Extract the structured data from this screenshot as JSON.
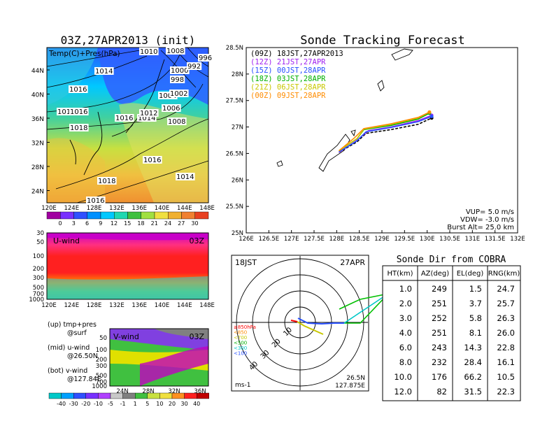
{
  "left": {
    "map_title": "03Z,27APR2013 (init)",
    "map_label": "Temp(C)+Pres(hPa)",
    "lat_ticks": [
      "44N",
      "40N",
      "36N",
      "32N",
      "28N",
      "24N"
    ],
    "lon_ticks": [
      "120E",
      "124E",
      "128E",
      "132E",
      "136E",
      "140E",
      "144E",
      "148E"
    ],
    "pressure_labels": [
      "1010",
      "1008",
      "1014",
      "1016",
      "1016",
      "1016",
      "1018",
      "1016",
      "1014",
      "1012",
      "1008",
      "1006",
      "1004",
      "1000",
      "998",
      "992",
      "996",
      "1016",
      "1018",
      "1014",
      "1016",
      "1002"
    ],
    "temp_colorbar": [
      "0",
      "3",
      "6",
      "9",
      "12",
      "15",
      "18",
      "21",
      "24",
      "27",
      "30"
    ],
    "uwind_title": "U-wind",
    "uwind_time": "03Z",
    "uwind_yticks": [
      "30",
      "50",
      "100",
      "200",
      "300",
      "500",
      "700",
      "1000"
    ],
    "vwind_title": "V-wind",
    "vwind_time": "03Z",
    "vwind_yticks": [
      "50",
      "100",
      "200",
      "300",
      "500",
      "700",
      "1000"
    ],
    "vwind_xticks": [
      "24N",
      "28N",
      "32N",
      "36N"
    ],
    "legend": [
      "(up) tmp+pres",
      "@surf",
      "(mid) u-wind",
      "@26.50N",
      "(bot) v-wind",
      "@127.84E"
    ],
    "wind_colorbar": [
      "-40",
      "-30",
      "-20",
      "-10",
      "-5",
      "-1",
      "1",
      "5",
      "10",
      "20",
      "30",
      "40"
    ]
  },
  "chart_data": {
    "type": "line",
    "title": "Sonde Tracking Forecast",
    "xlabel": "",
    "ylabel": "",
    "x_ticks": [
      "126E",
      "126.5E",
      "127E",
      "127.5E",
      "128E",
      "128.5E",
      "129E",
      "129.5E",
      "130E",
      "130.5E",
      "131E",
      "131.5E",
      "132E"
    ],
    "y_ticks": [
      "28.5N",
      "28N",
      "27.5N",
      "27N",
      "26.5N",
      "26N",
      "25.5N",
      "25N"
    ],
    "xlim": [
      126,
      132
    ],
    "ylim": [
      25,
      28.5
    ],
    "series": [
      {
        "name": "(09Z) 18JST,27APR2013",
        "color": "#000000",
        "x": [
          128.05,
          128.45,
          128.65,
          129.2,
          129.8,
          130.1
        ],
        "y": [
          26.52,
          26.72,
          26.88,
          26.95,
          27.05,
          27.17
        ]
      },
      {
        "name": "(12Z) 21JST,27APR",
        "color": "#a020f0",
        "x": [
          128.05,
          128.45,
          128.7,
          129.2,
          129.8,
          130.1
        ],
        "y": [
          26.52,
          26.75,
          26.93,
          27.0,
          27.12,
          27.22
        ]
      },
      {
        "name": "(15Z) 00JST,28APR",
        "color": "#2850ff",
        "x": [
          128.05,
          128.45,
          128.65,
          129.2,
          129.8,
          130.1
        ],
        "y": [
          26.53,
          26.74,
          26.91,
          26.99,
          27.1,
          27.2
        ]
      },
      {
        "name": "(18Z) 03JST,28APR",
        "color": "#00b000",
        "x": [
          128.05,
          128.45,
          128.6,
          129.2,
          129.8,
          130.05
        ],
        "y": [
          26.55,
          26.78,
          26.95,
          27.03,
          27.15,
          27.26
        ]
      },
      {
        "name": "(21Z) 06JST,28APR",
        "color": "#c8c800",
        "x": [
          128.05,
          128.45,
          128.6,
          129.2,
          129.8,
          130.05
        ],
        "y": [
          26.55,
          26.78,
          26.96,
          27.05,
          27.17,
          27.28
        ]
      },
      {
        "name": "(00Z) 09JST,28APR",
        "color": "#ff8c00",
        "x": [
          128.05,
          128.4,
          128.6,
          129.2,
          129.8,
          130.05
        ],
        "y": [
          26.55,
          26.8,
          26.97,
          27.06,
          27.18,
          27.28
        ]
      }
    ],
    "params": [
      "VUP= 5.0 m/s",
      "VDW= -3.0 m/s",
      "Burst Alt= 25.0 km"
    ]
  },
  "polar": {
    "time": "18JST",
    "date": "27APR",
    "ring_labels": [
      "10",
      "20",
      "30",
      "40"
    ],
    "pressure_legend": [
      "≥850hPa",
      "<850",
      "<700",
      "<500",
      "<300",
      "<100"
    ],
    "pressure_colors": [
      "#ff0000",
      "#ff8c00",
      "#c8c800",
      "#00b000",
      "#00c8c8",
      "#2850ff"
    ],
    "unit": "ms-1",
    "location": [
      "26.5N",
      "127.875E"
    ]
  },
  "table": {
    "title": "Sonde Dir from COBRA",
    "headers": [
      "HT(km)",
      "AZ(deg)",
      "EL(deg)",
      "RNG(km)"
    ],
    "rows": [
      [
        "1.0",
        "249",
        "1.5",
        "24.7"
      ],
      [
        "2.0",
        "251",
        "3.7",
        "25.7"
      ],
      [
        "3.0",
        "252",
        "5.8",
        "26.3"
      ],
      [
        "4.0",
        "251",
        "8.1",
        "26.0"
      ],
      [
        "6.0",
        "243",
        "14.3",
        "22.8"
      ],
      [
        "8.0",
        "232",
        "28.4",
        "16.1"
      ],
      [
        "10.0",
        "176",
        "66.2",
        "10.5"
      ],
      [
        "12.0",
        "82",
        "31.5",
        "22.3"
      ]
    ]
  }
}
